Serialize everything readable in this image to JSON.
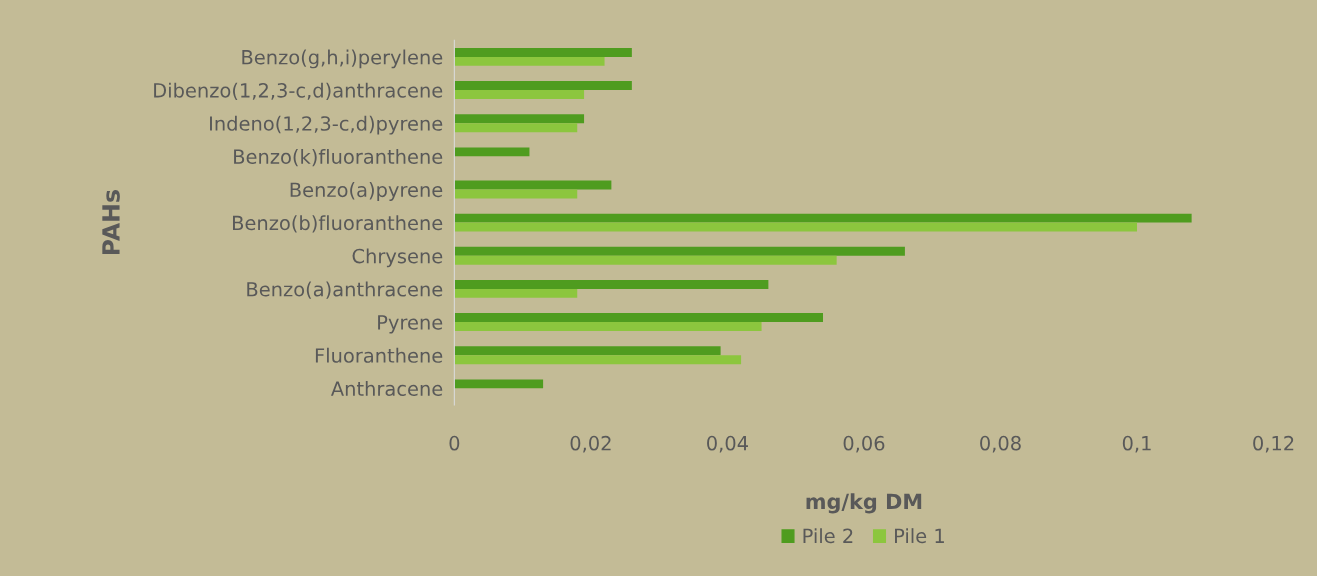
{
  "chart_data": {
    "type": "bar",
    "orientation": "horizontal",
    "xlabel": "mg/kg DM",
    "ylabel": "PAHs",
    "categories": [
      "Benzo(g,h,i)perylene",
      "Dibenzo(1,2,3-c,d)anthracene",
      "Indeno(1,2,3-c,d)pyrene",
      "Benzo(k)fluoranthene",
      "Benzo(a)pyrene",
      "Benzo(b)fluoranthene",
      "Chrysene",
      "Benzo(a)anthracene",
      "Pyrene",
      "Fluoranthene",
      "Anthracene"
    ],
    "series": [
      {
        "name": "Pile 2",
        "color": "#4f9c1f",
        "values": [
          0.026,
          0.026,
          0.019,
          0.011,
          0.023,
          0.108,
          0.066,
          0.046,
          0.054,
          0.039,
          0.013
        ]
      },
      {
        "name": "Pile 1",
        "color": "#8cc63e",
        "values": [
          0.022,
          0.019,
          0.018,
          null,
          0.018,
          0.1,
          0.056,
          0.018,
          0.045,
          0.042,
          null
        ]
      }
    ],
    "xlim": [
      0,
      0.12
    ],
    "xticks": [
      {
        "value": 0,
        "label": "0"
      },
      {
        "value": 0.02,
        "label": "0,02"
      },
      {
        "value": 0.04,
        "label": "0,04"
      },
      {
        "value": 0.06,
        "label": "0,06"
      },
      {
        "value": 0.08,
        "label": "0,08"
      },
      {
        "value": 0.1,
        "label": "0,1"
      },
      {
        "value": 0.12,
        "label": "0,12"
      }
    ],
    "grid": false,
    "legend": "bottom"
  }
}
